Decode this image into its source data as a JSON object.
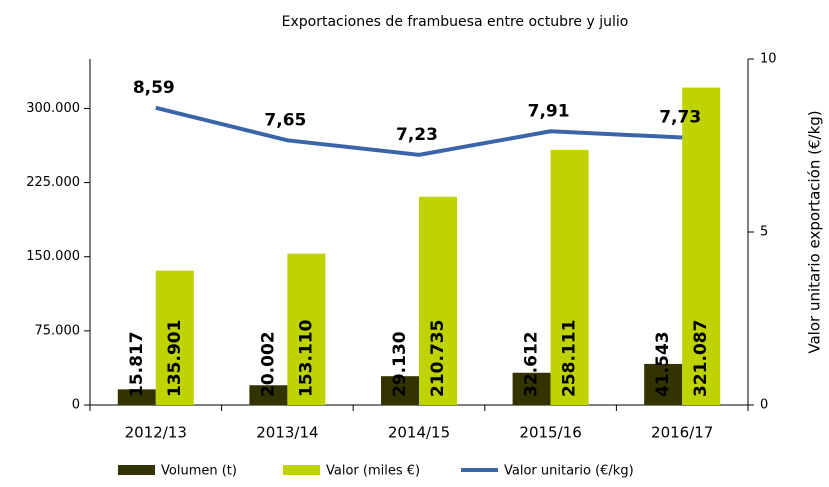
{
  "chart_data": {
    "type": "bar",
    "title": "Exportaciones de frambuesa entre octubre y julio",
    "y2label": "Valor unitario exportación (€/kg)",
    "categories": [
      "2012/13",
      "2013/14",
      "2014/15",
      "2015/16",
      "2016/17"
    ],
    "series": [
      {
        "name": "Volumen (t)",
        "color": "#333300",
        "values": [
          15817,
          20002,
          29130,
          32612,
          41543
        ],
        "value_labels": [
          "15.817",
          "20.002",
          "29.130",
          "32.612",
          "41.543"
        ]
      },
      {
        "name": "Valor (miles €)",
        "color": "#bfd300",
        "values": [
          135901,
          153110,
          210735,
          258111,
          321087
        ],
        "value_labels": [
          "135.901",
          "153.110",
          "210.735",
          "258.111",
          "321.087"
        ]
      },
      {
        "name": "Valor unitario (€/kg)",
        "color": "#3a65a8",
        "type": "line",
        "axis": "y2",
        "values": [
          8.59,
          7.65,
          7.23,
          7.91,
          7.73
        ],
        "value_labels": [
          "8,59",
          "7,65",
          "7,23",
          "7,91",
          "7,73"
        ]
      }
    ],
    "ylim": [
      0,
      350000
    ],
    "yticks": [
      0,
      {
        "value": 75000,
        "label": "75.000"
      },
      {
        "value": 150000,
        "label": "150.000"
      },
      {
        "value": 225000,
        "label": "225.000"
      },
      {
        "value": 300000,
        "label": "300.000"
      }
    ],
    "y2lim": [
      0,
      10
    ],
    "y2ticks": [
      0,
      5,
      10
    ],
    "grid": false,
    "legend": "bottom"
  }
}
